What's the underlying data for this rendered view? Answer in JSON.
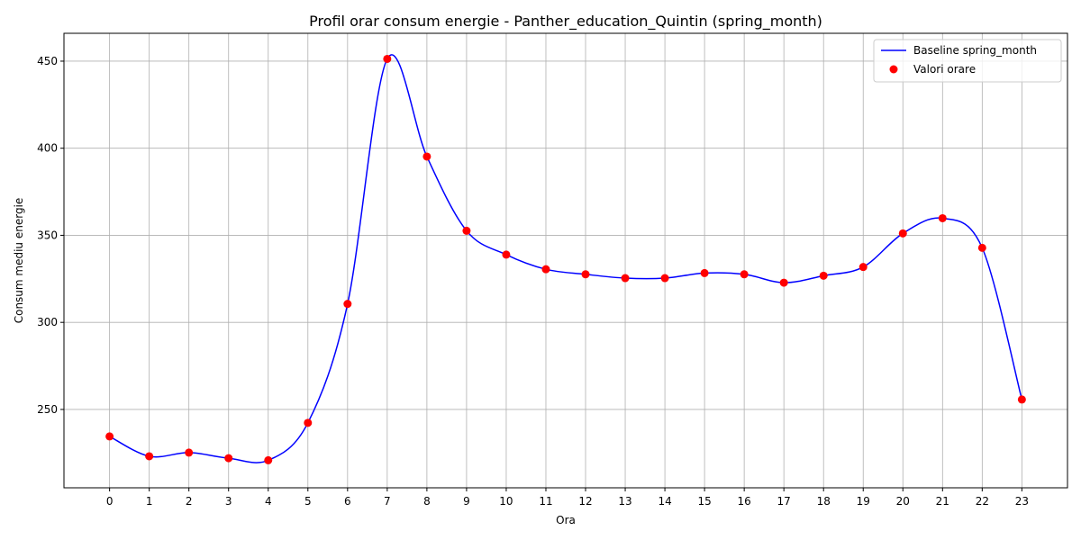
{
  "chart_data": {
    "type": "line",
    "title": "Profil orar consum energie - Panther_education_Quintin (spring_month)",
    "xlabel": "Ora",
    "ylabel": "Consum mediu energie",
    "x": [
      0,
      1,
      2,
      3,
      4,
      5,
      6,
      7,
      8,
      9,
      10,
      11,
      12,
      13,
      14,
      15,
      16,
      17,
      18,
      19,
      20,
      21,
      22,
      23
    ],
    "xlim": [
      -1.15,
      24.15
    ],
    "ylim": [
      205,
      466
    ],
    "yticks": [
      250,
      300,
      350,
      400,
      450
    ],
    "grid": true,
    "legend_position": "top-right",
    "series": [
      {
        "name": "Baseline spring_month",
        "kind": "smooth-line",
        "color": "#0000ff",
        "values": [
          234.5,
          223.1,
          225.2,
          222.0,
          220.8,
          242.3,
          310.6,
          451.3,
          395.2,
          352.6,
          338.9,
          330.5,
          327.6,
          325.4,
          325.4,
          328.3,
          327.6,
          322.8,
          326.8,
          331.8,
          351.1,
          359.8,
          342.8,
          255.7
        ]
      },
      {
        "name": "Valori orare",
        "kind": "scatter",
        "color": "#ff0000",
        "values": [
          234.5,
          223.1,
          225.2,
          222.0,
          220.8,
          242.3,
          310.6,
          451.3,
          395.2,
          352.6,
          338.9,
          330.5,
          327.6,
          325.4,
          325.4,
          328.3,
          327.6,
          322.8,
          326.8,
          331.8,
          351.1,
          359.8,
          342.8,
          255.7
        ]
      }
    ]
  }
}
